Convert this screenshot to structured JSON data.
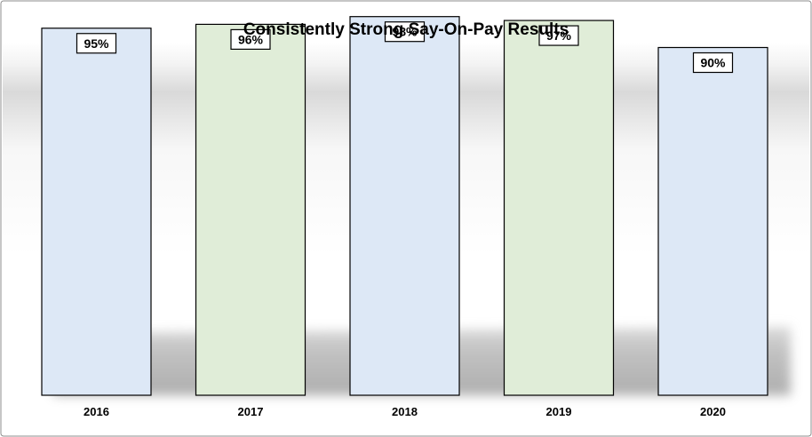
{
  "chart_data": {
    "type": "bar",
    "title": "Consistently Strong Say-On-Pay Results",
    "xlabel": "",
    "ylabel": "",
    "ylim": [
      0,
      100
    ],
    "grid": false,
    "legend": "none",
    "categories": [
      "2016",
      "2017",
      "2018",
      "2019",
      "2020"
    ],
    "values": [
      95,
      96,
      98,
      97,
      90
    ],
    "data_labels": [
      "95%",
      "96%",
      "98%",
      "97%",
      "90%"
    ],
    "colors": {
      "bar_blue": "#dde8f6",
      "bar_green": "#e0edd8",
      "bar_stroke": "#000000",
      "frame": "#8c8c8c",
      "label_box_fill": "#ffffff"
    },
    "bar_fill_pattern": [
      "bar_blue",
      "bar_green",
      "bar_blue",
      "bar_green",
      "bar_blue"
    ]
  }
}
